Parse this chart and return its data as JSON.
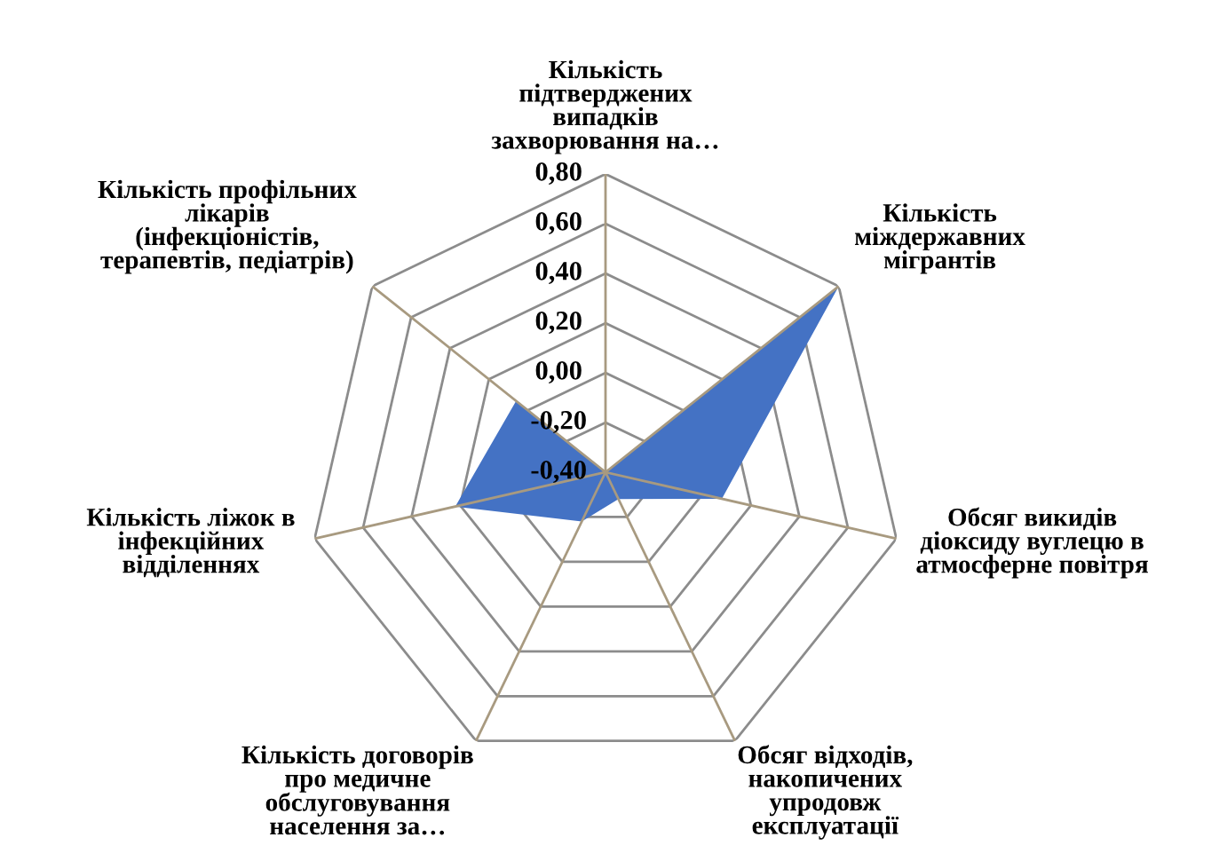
{
  "chart_data": {
    "type": "radar",
    "categories": [
      "Кількість\nпідтверджених\nвипадків\nзахворювання на…",
      "Кількість\nміждержавних\nмігрантів",
      "Обсяг викидів\nдіоксиду вуглецю в\nатмосферне повітря",
      "Обсяг відходів,\nнакопичених\nупродовж\nексплуатації",
      "Кількість договорів\nпро медичне\nобслуговування\nнаселення за…",
      "Кількість ліжок в\nінфекційних\nвідділеннях",
      "Кількість профільних\nлікарів\n(інфекціоністів,\nтерапевтів, педіатрів)"
    ],
    "series": [
      {
        "color": "#4472c4",
        "values": [
          -0.4,
          0.8,
          0.08,
          -0.28,
          -0.18,
          0.22,
          0.06
        ]
      }
    ],
    "ylim": [
      -0.4,
      0.8
    ],
    "yticks": [
      {
        "value": -0.4,
        "label": "-0,40"
      },
      {
        "value": -0.2,
        "label": "-0,20"
      },
      {
        "value": 0.0,
        "label": "0,00"
      },
      {
        "value": 0.2,
        "label": "0,20"
      },
      {
        "value": 0.4,
        "label": "0,40"
      },
      {
        "value": 0.6,
        "label": "0,60"
      },
      {
        "value": 0.8,
        "label": "0,80"
      }
    ],
    "grid": true
  }
}
